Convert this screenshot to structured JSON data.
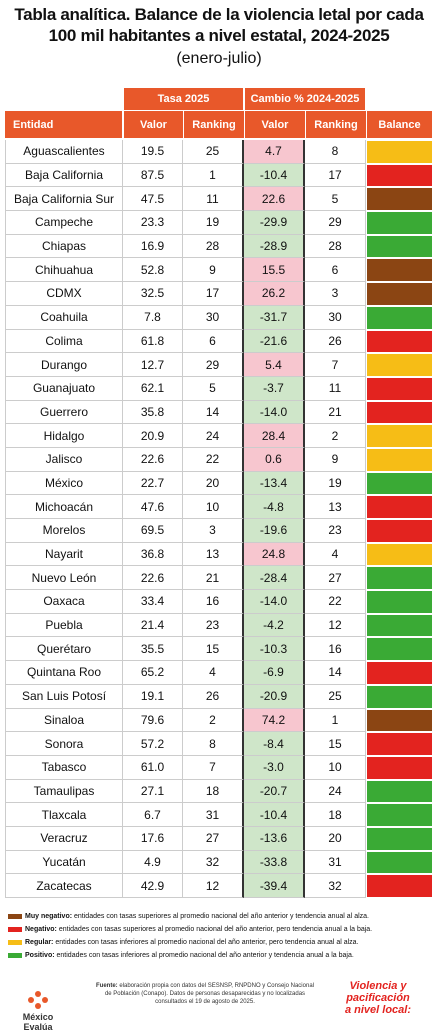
{
  "header": {
    "title": "Tabla analítica. Balance de la violencia letal por cada 100 mil habitantes a nivel estatal, 2024-2025",
    "subtitle": "(enero-julio)"
  },
  "table": {
    "groups": [
      "Tasa 2025",
      "Cambio % 2024-2025"
    ],
    "columns": [
      "Entidad",
      "Valor",
      "Ranking",
      "Valor",
      "Ranking",
      "Balance"
    ],
    "rows": [
      [
        "Aguascalientes",
        "19.5",
        "25",
        "4.7",
        "8",
        "#f6bd16"
      ],
      [
        "Baja California",
        "87.5",
        "1",
        "-10.4",
        "17",
        "#e3231f"
      ],
      [
        "Baja California Sur",
        "47.5",
        "11",
        "22.6",
        "5",
        "#8b4513"
      ],
      [
        "Campeche",
        "23.3",
        "19",
        "-29.9",
        "29",
        "#3aaa35"
      ],
      [
        "Chiapas",
        "16.9",
        "28",
        "-28.9",
        "28",
        "#3aaa35"
      ],
      [
        "Chihuahua",
        "52.8",
        "9",
        "15.5",
        "6",
        "#8b4513"
      ],
      [
        "CDMX",
        "32.5",
        "17",
        "26.2",
        "3",
        "#8b4513"
      ],
      [
        "Coahuila",
        "7.8",
        "30",
        "-31.7",
        "30",
        "#3aaa35"
      ],
      [
        "Colima",
        "61.8",
        "6",
        "-21.6",
        "26",
        "#e3231f"
      ],
      [
        "Durango",
        "12.7",
        "29",
        "5.4",
        "7",
        "#f6bd16"
      ],
      [
        "Guanajuato",
        "62.1",
        "5",
        "-3.7",
        "11",
        "#e3231f"
      ],
      [
        "Guerrero",
        "35.8",
        "14",
        "-14.0",
        "21",
        "#e3231f"
      ],
      [
        "Hidalgo",
        "20.9",
        "24",
        "28.4",
        "2",
        "#f6bd16"
      ],
      [
        "Jalisco",
        "22.6",
        "22",
        "0.6",
        "9",
        "#f6bd16"
      ],
      [
        "México",
        "22.7",
        "20",
        "-13.4",
        "19",
        "#3aaa35"
      ],
      [
        "Michoacán",
        "47.6",
        "10",
        "-4.8",
        "13",
        "#e3231f"
      ],
      [
        "Morelos",
        "69.5",
        "3",
        "-19.6",
        "23",
        "#e3231f"
      ],
      [
        "Nayarit",
        "36.8",
        "13",
        "24.8",
        "4",
        "#f6bd16"
      ],
      [
        "Nuevo León",
        "22.6",
        "21",
        "-28.4",
        "27",
        "#3aaa35"
      ],
      [
        "Oaxaca",
        "33.4",
        "16",
        "-14.0",
        "22",
        "#3aaa35"
      ],
      [
        "Puebla",
        "21.4",
        "23",
        "-4.2",
        "12",
        "#3aaa35"
      ],
      [
        "Querétaro",
        "35.5",
        "15",
        "-10.3",
        "16",
        "#3aaa35"
      ],
      [
        "Quintana Roo",
        "65.2",
        "4",
        "-6.9",
        "14",
        "#e3231f"
      ],
      [
        "San Luis Potosí",
        "19.1",
        "26",
        "-20.9",
        "25",
        "#3aaa35"
      ],
      [
        "Sinaloa",
        "79.6",
        "2",
        "74.2",
        "1",
        "#8b4513"
      ],
      [
        "Sonora",
        "57.2",
        "8",
        "-8.4",
        "15",
        "#e3231f"
      ],
      [
        "Tabasco",
        "61.0",
        "7",
        "-3.0",
        "10",
        "#e3231f"
      ],
      [
        "Tamaulipas",
        "27.1",
        "18",
        "-20.7",
        "24",
        "#3aaa35"
      ],
      [
        "Tlaxcala",
        "6.7",
        "31",
        "-10.4",
        "18",
        "#3aaa35"
      ],
      [
        "Veracruz",
        "17.6",
        "27",
        "-13.6",
        "20",
        "#3aaa35"
      ],
      [
        "Yucatán",
        "4.9",
        "32",
        "-33.8",
        "31",
        "#3aaa35"
      ],
      [
        "Zacatecas",
        "42.9",
        "12",
        "-39.4",
        "32",
        "#e3231f"
      ]
    ]
  },
  "legend": [
    {
      "label": "Muy negativo:",
      "text": "entidades con tasas superiores al promedio nacional del año anterior y tendencia anual al alza.",
      "color": "#8b4513"
    },
    {
      "label": "Negativo:",
      "text": "entidades con tasas superiores al promedio nacional del año anterior, pero tendencia anual a la baja.",
      "color": "#e3231f"
    },
    {
      "label": "Regular:",
      "text": "entidades con tasas inferiores al promedio nacional del año anterior, pero tendencia anual al alza.",
      "color": "#f6bd16"
    },
    {
      "label": "Positivo:",
      "text": "entidades con tasas inferiores al promedio nacional del año anterior y tendencia anual a la baja.",
      "color": "#3aaa35"
    }
  ],
  "footer": {
    "source_label": "Fuente:",
    "source": "elaboración propia con datos del SESNSP, RNPDNO y Consejo Nacional de Población (Conapo). Datos de personas desaparecidas y no localizadas consultados el 19 de agosto de 2025.",
    "logo": "México Evalúa",
    "brand_line1": "Violencia y pacificación",
    "brand_line2": "a nivel local:"
  }
}
